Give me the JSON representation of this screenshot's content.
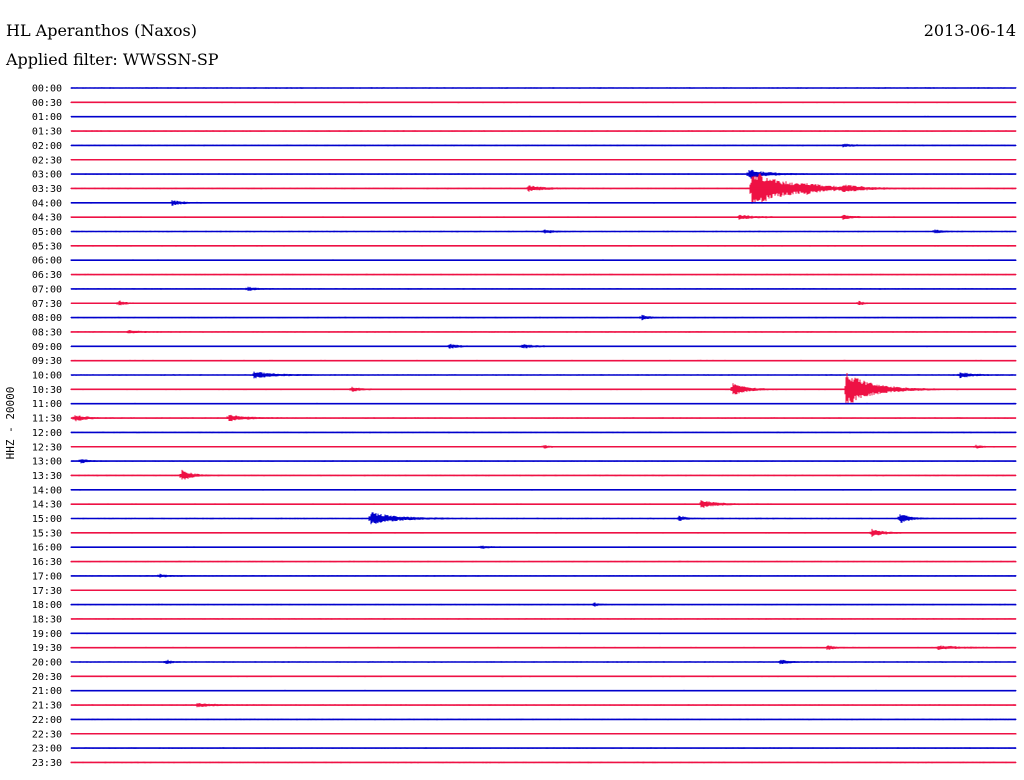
{
  "header": {
    "station": "HL Aperanthos (Naxos)",
    "date": "2013-06-14",
    "filter": "Applied filter: WWSSN-SP"
  },
  "chart_data": {
    "type": "line",
    "title": "HL Aperanthos (Naxos)",
    "subtitle": "Applied filter: WWSSN-SP",
    "ylabel": "HHZ - 20000",
    "xlabel": "",
    "grid": false,
    "legend": "none",
    "colors": {
      "even_row": "#0000cc",
      "odd_row": "#ee1144"
    },
    "rows": [
      "00:00",
      "00:30",
      "01:00",
      "01:30",
      "02:00",
      "02:30",
      "03:00",
      "03:30",
      "04:00",
      "04:30",
      "05:00",
      "05:30",
      "06:00",
      "06:30",
      "07:00",
      "07:30",
      "08:00",
      "08:30",
      "09:00",
      "09:30",
      "10:00",
      "10:30",
      "11:00",
      "11:30",
      "12:00",
      "12:30",
      "13:00",
      "13:30",
      "14:00",
      "14:30",
      "15:00",
      "15:30",
      "16:00",
      "16:30",
      "17:00",
      "17:30",
      "18:00",
      "18:30",
      "19:00",
      "19:30",
      "20:00",
      "20:30",
      "21:00",
      "21:30",
      "22:00",
      "22:30",
      "23:00",
      "23:30"
    ],
    "events": [
      {
        "row": "03:00",
        "minute": 21.5,
        "amp": 0.6,
        "dur": 1.2
      },
      {
        "row": "03:30",
        "minute": 14.5,
        "amp": 0.4,
        "dur": 1.0
      },
      {
        "row": "03:30",
        "minute": 21.6,
        "amp": 2.6,
        "dur": 2.2
      },
      {
        "row": "03:30",
        "minute": 23.3,
        "amp": 0.35,
        "dur": 0.8
      },
      {
        "row": "03:30",
        "minute": 24.5,
        "amp": 0.4,
        "dur": 0.9
      },
      {
        "row": "04:00",
        "minute": 3.2,
        "amp": 0.35,
        "dur": 0.6
      },
      {
        "row": "04:30",
        "minute": 21.2,
        "amp": 0.35,
        "dur": 0.8
      },
      {
        "row": "04:30",
        "minute": 24.5,
        "amp": 0.3,
        "dur": 0.6
      },
      {
        "row": "05:00",
        "minute": 15.0,
        "amp": 0.3,
        "dur": 0.5
      },
      {
        "row": "05:00",
        "minute": 27.4,
        "amp": 0.3,
        "dur": 0.5
      },
      {
        "row": "07:00",
        "minute": 5.6,
        "amp": 0.35,
        "dur": 0.4
      },
      {
        "row": "07:30",
        "minute": 1.5,
        "amp": 0.4,
        "dur": 0.4
      },
      {
        "row": "07:30",
        "minute": 25.0,
        "amp": 0.3,
        "dur": 0.3
      },
      {
        "row": "08:00",
        "minute": 18.1,
        "amp": 0.35,
        "dur": 0.5
      },
      {
        "row": "08:30",
        "minute": 1.8,
        "amp": 0.3,
        "dur": 0.6
      },
      {
        "row": "09:00",
        "minute": 12.0,
        "amp": 0.3,
        "dur": 0.6
      },
      {
        "row": "09:00",
        "minute": 14.3,
        "amp": 0.3,
        "dur": 0.8
      },
      {
        "row": "10:00",
        "minute": 5.8,
        "amp": 0.45,
        "dur": 1.2
      },
      {
        "row": "10:00",
        "minute": 28.2,
        "amp": 0.4,
        "dur": 0.8
      },
      {
        "row": "10:30",
        "minute": 8.9,
        "amp": 0.35,
        "dur": 0.5
      },
      {
        "row": "10:30",
        "minute": 21.0,
        "amp": 0.9,
        "dur": 0.8
      },
      {
        "row": "10:30",
        "minute": 24.6,
        "amp": 2.5,
        "dur": 1.5
      },
      {
        "row": "11:30",
        "minute": 0.1,
        "amp": 0.5,
        "dur": 0.6
      },
      {
        "row": "11:30",
        "minute": 5.0,
        "amp": 0.45,
        "dur": 1.0
      },
      {
        "row": "13:00",
        "minute": 0.3,
        "amp": 0.3,
        "dur": 0.5
      },
      {
        "row": "13:30",
        "minute": 3.5,
        "amp": 0.8,
        "dur": 0.6
      },
      {
        "row": "14:30",
        "minute": 20.0,
        "amp": 0.5,
        "dur": 1.0
      },
      {
        "row": "15:00",
        "minute": 9.5,
        "amp": 0.9,
        "dur": 1.5
      },
      {
        "row": "15:00",
        "minute": 19.3,
        "amp": 0.35,
        "dur": 0.5
      },
      {
        "row": "15:00",
        "minute": 26.3,
        "amp": 0.65,
        "dur": 0.6
      },
      {
        "row": "15:30",
        "minute": 25.4,
        "amp": 0.6,
        "dur": 0.6
      },
      {
        "row": "16:00",
        "minute": 13.0,
        "amp": 0.25,
        "dur": 0.4
      },
      {
        "row": "17:00",
        "minute": 2.8,
        "amp": 0.3,
        "dur": 0.4
      },
      {
        "row": "18:00",
        "minute": 16.6,
        "amp": 0.25,
        "dur": 0.4
      },
      {
        "row": "19:30",
        "minute": 24.0,
        "amp": 0.3,
        "dur": 0.6
      },
      {
        "row": "19:30",
        "minute": 27.5,
        "amp": 0.25,
        "dur": 1.5
      },
      {
        "row": "20:00",
        "minute": 3.0,
        "amp": 0.3,
        "dur": 0.4
      },
      {
        "row": "20:00",
        "minute": 22.5,
        "amp": 0.3,
        "dur": 0.6
      },
      {
        "row": "21:30",
        "minute": 4.0,
        "amp": 0.25,
        "dur": 1.0
      },
      {
        "row": "02:00",
        "minute": 24.5,
        "amp": 0.25,
        "dur": 0.5
      },
      {
        "row": "12:30",
        "minute": 15.0,
        "amp": 0.25,
        "dur": 0.4
      },
      {
        "row": "12:30",
        "minute": 28.7,
        "amp": 0.25,
        "dur": 0.4
      }
    ]
  }
}
